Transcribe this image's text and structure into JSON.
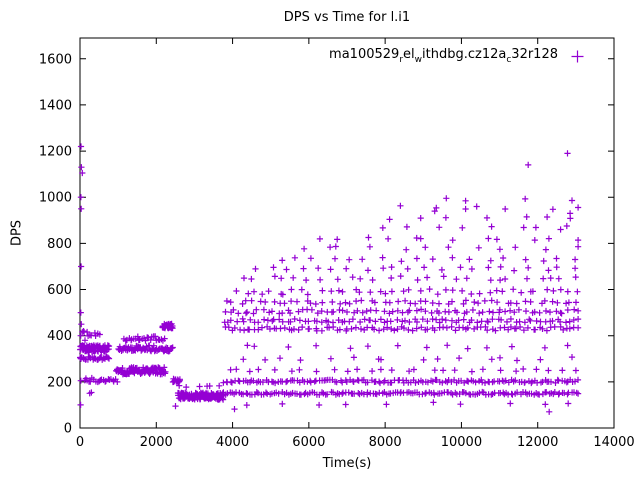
{
  "window": {
    "background": "#ffffff"
  },
  "chart_data": {
    "type": "scatter",
    "title": "DPS vs Time for l.i1",
    "xlabel": "Time(s)",
    "ylabel": "DPS",
    "xlim": [
      0,
      14000
    ],
    "ylim": [
      0,
      1690
    ],
    "xticks": [
      0,
      2000,
      4000,
      6000,
      8000,
      10000,
      12000,
      14000
    ],
    "yticks": [
      0,
      200,
      400,
      600,
      800,
      1000,
      1200,
      1400,
      1600
    ],
    "grid": false,
    "legend_position": "top-center-inside",
    "marker": "plus",
    "color": "#9400D3",
    "legend": {
      "label_plain": "ma100529_rel_withdbg.cz12a_c32r128",
      "segments": [
        {
          "t": "ma100529"
        },
        {
          "t": "r",
          "sub": true
        },
        {
          "t": "el"
        },
        {
          "t": "w",
          "sub": true
        },
        {
          "t": "ithdbg.cz12a"
        },
        {
          "t": "c",
          "sub": true
        },
        {
          "t": "32r128"
        }
      ]
    },
    "series": [
      {
        "name": "ma100529_rel_withdbg.cz12a_c32r128",
        "bands_format": [
          "x_start",
          "x_end",
          "y_center",
          "y_spread",
          "n_points"
        ],
        "bands": [
          [
            0,
            760,
            345,
            28,
            70
          ],
          [
            0,
            760,
            302,
            14,
            28
          ],
          [
            60,
            520,
            410,
            22,
            10
          ],
          [
            120,
            980,
            208,
            18,
            22
          ],
          [
            255,
            300,
            152,
            6,
            2
          ],
          [
            950,
            2240,
            248,
            32,
            90
          ],
          [
            1000,
            2260,
            345,
            26,
            55
          ],
          [
            1150,
            2230,
            388,
            20,
            26
          ],
          [
            2160,
            2430,
            442,
            22,
            32
          ],
          [
            2180,
            2430,
            340,
            18,
            14
          ],
          [
            2430,
            2625,
            206,
            14,
            16
          ],
          [
            2570,
            3760,
            138,
            30,
            130
          ],
          [
            2600,
            3700,
            180,
            8,
            6
          ],
          [
            3760,
            13060,
            150,
            12,
            160
          ],
          [
            3760,
            13060,
            202,
            14,
            150
          ],
          [
            3800,
            13000,
            250,
            12,
            28
          ],
          [
            4000,
            12900,
            300,
            16,
            16
          ],
          [
            4100,
            12950,
            352,
            16,
            14
          ],
          [
            3780,
            13060,
            430,
            18,
            95
          ],
          [
            3780,
            13060,
            465,
            16,
            85
          ],
          [
            3800,
            13060,
            505,
            18,
            75
          ],
          [
            3850,
            13060,
            545,
            16,
            55
          ],
          [
            4100,
            13060,
            590,
            24,
            42
          ],
          [
            4300,
            13060,
            650,
            20,
            26
          ],
          [
            4600,
            13060,
            690,
            16,
            22
          ],
          [
            5300,
            13060,
            730,
            18,
            18
          ],
          [
            5600,
            13060,
            780,
            16,
            12
          ],
          [
            6000,
            13060,
            820,
            16,
            12
          ],
          [
            7600,
            13060,
            870,
            16,
            8
          ],
          [
            8000,
            13060,
            910,
            16,
            7
          ],
          [
            8400,
            13060,
            955,
            16,
            6
          ],
          [
            9000,
            12900,
            990,
            12,
            4
          ],
          [
            4000,
            12800,
            105,
            12,
            10
          ]
        ],
        "points": [
          [
            15,
            100
          ],
          [
            20,
            205
          ],
          [
            25,
            300
          ],
          [
            30,
            355
          ],
          [
            18,
            400
          ],
          [
            35,
            450
          ],
          [
            22,
            500
          ],
          [
            28,
            700
          ],
          [
            32,
            950
          ],
          [
            24,
            1000
          ],
          [
            60,
            1105
          ],
          [
            38,
            1130
          ],
          [
            26,
            1220
          ],
          [
            95,
            420
          ],
          [
            130,
            380
          ],
          [
            2505,
            95
          ],
          [
            4050,
            82
          ],
          [
            11750,
            1140
          ],
          [
            12780,
            1190
          ],
          [
            9300,
            940
          ],
          [
            10400,
            960
          ],
          [
            12300,
            70
          ],
          [
            12850,
            930
          ],
          [
            12600,
            860
          ]
        ]
      }
    ]
  }
}
